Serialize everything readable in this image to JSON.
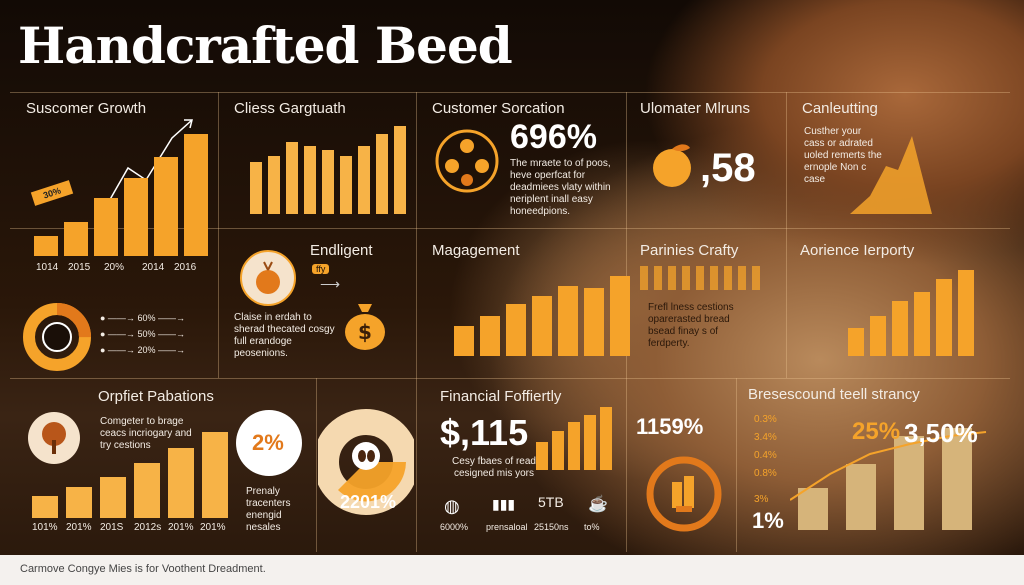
{
  "title": "Handcrafted Beed",
  "footer": "Carmove Congye Mies is for Voothent Dreadment.",
  "colors": {
    "accent": "#f5a32a",
    "accent_dark": "#e2791b",
    "tan": "#d6b47a",
    "text": "#f3ece4"
  },
  "panels": {
    "customer_growth": {
      "heading": "Suscomer Growth",
      "badge": "30%",
      "bars": [
        0.12,
        0.2,
        0.34,
        0.46,
        0.58,
        0.72
      ],
      "labels": [
        "1014",
        "2015",
        "20%",
        "2014",
        "2016"
      ]
    },
    "class_graph": {
      "heading": "Cliess Gargtuath",
      "bars": [
        0.52,
        0.58,
        0.72,
        0.68,
        0.64,
        0.58,
        0.68,
        0.8,
        0.88
      ]
    },
    "customer_satisfaction": {
      "heading": "Customer Sorcation",
      "value": "696%",
      "text": "The mraete to of poos, heve operfcat for deadmiees vlaty within neriplent inall easy honeedpions."
    },
    "ulomater": {
      "heading": "Ulomater Mlruns",
      "value": ",58"
    },
    "canleutting": {
      "heading": "Canleutting",
      "text": "Custher your cass or adrated uoled remerts the ernople Non c case"
    },
    "donut_legend": {
      "rows": [
        "60%",
        "50%",
        "20%"
      ],
      "icon": "pie-icon"
    },
    "enduligent": {
      "heading": "Endligent",
      "pill": "ffy",
      "text": "Claise in erdah to sherad thecated cosgy full erandoge peosenions."
    },
    "magagement": {
      "heading": "Magagement",
      "bars": [
        0.3,
        0.4,
        0.52,
        0.6,
        0.7,
        0.68,
        0.8
      ]
    },
    "pannies_crafty": {
      "heading": "Parinies Crafty",
      "text": "Frefl lness cestions oparerasted bread bsead finay s of ferdperty."
    },
    "audience_property": {
      "heading": "Aorience Ierporty",
      "bars": [
        0.25,
        0.36,
        0.5,
        0.58,
        0.7,
        0.78
      ]
    },
    "profit_rotations": {
      "heading": "Orpfiet Pabations",
      "text": "Comgeter to brage ceacs incriogary and try cestions",
      "bars": [
        0.18,
        0.26,
        0.34,
        0.46,
        0.58,
        0.72
      ],
      "labels": [
        "101%",
        "201%",
        "201S",
        "2012s",
        "201%",
        "201%"
      ]
    },
    "two_percent": {
      "value": "2%",
      "text": "Prenaly tracenters enengid nesales"
    },
    "pie_2201": {
      "value": "2201%"
    },
    "financial": {
      "heading": "Financial Foffiertly",
      "value": "$,115",
      "text": "Cesy fbaes of read cesigned mis yors",
      "bars": [
        0.4,
        0.55,
        0.68,
        0.78,
        0.9
      ],
      "icons_labels": [
        "6000%",
        "prensaloal",
        "5TB",
        "25150ns",
        "to%"
      ]
    },
    "growth_1159": {
      "value": "1159%"
    },
    "breseescound": {
      "heading": "Bresescound teell strancy",
      "y_labels": [
        "0.3%",
        "3.4%",
        "0.4%",
        "0.8%",
        "3%"
      ],
      "value_a": "25%",
      "value_b": "3,50%",
      "bottom": "1%",
      "bars": [
        0.35,
        0.55,
        0.78,
        0.85
      ]
    }
  }
}
